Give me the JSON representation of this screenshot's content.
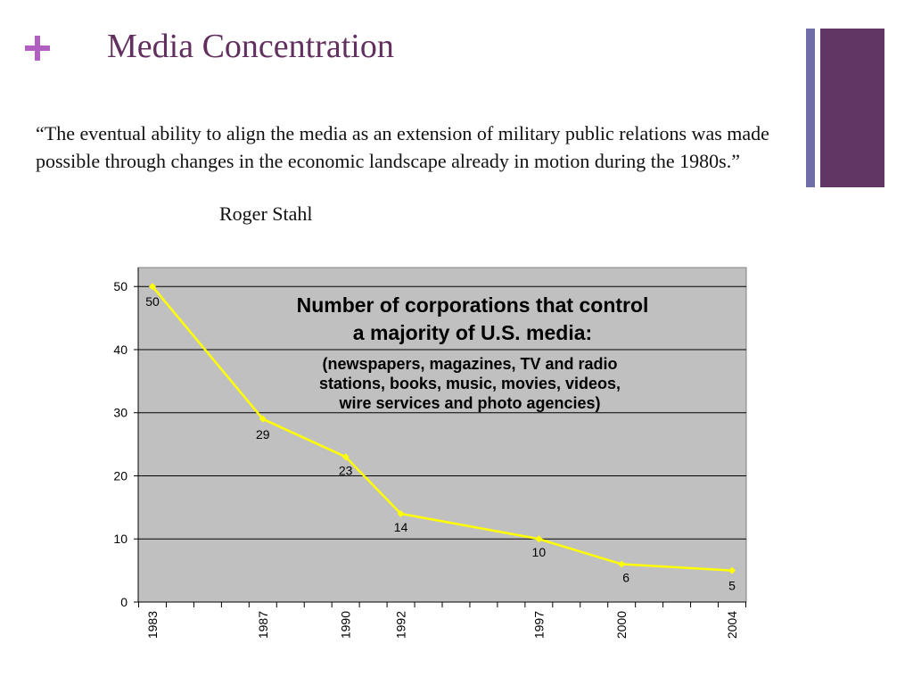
{
  "slide": {
    "title": "Media Concentration",
    "quote": "“The eventual ability to align the media as an extension of military public relations was made possible through changes in the economic landscape already in motion during the 1980s.”",
    "author": "Roger Stahl"
  },
  "colors": {
    "accent_plus": "#b15fc0",
    "title": "#62305f",
    "bar_thin": "#6f6ea8",
    "bar_thick": "#623664",
    "plot_bg": "#c0c0c0",
    "line": "#ffff00"
  },
  "icons": [
    "plus-icon"
  ],
  "chart_data": {
    "type": "line",
    "title": "Number of corporations that control a majority of U.S. media:",
    "title_lines": [
      "Number of corporations that control",
      "a majority of U.S. media:"
    ],
    "subtitle": "(newspapers, magazines, TV and radio stations, books, music, movies, videos, wire services and photo agencies)",
    "subtitle_lines": [
      "(newspapers, magazines, TV and radio",
      "stations, books, music, movies, videos,",
      "wire services and photo agencies)"
    ],
    "x": [
      1983,
      1987,
      1990,
      1992,
      1997,
      2000,
      2004
    ],
    "x_labels": [
      "1983",
      "1987",
      "1990",
      "1992",
      "1997",
      "2000",
      "2004"
    ],
    "values": [
      50,
      29,
      23,
      14,
      10,
      6,
      5
    ],
    "data_labels": [
      "50",
      "29",
      "23",
      "14",
      "10",
      "6",
      "5"
    ],
    "y_ticks": [
      0,
      10,
      20,
      30,
      40,
      50
    ],
    "y_tick_labels": [
      "0",
      "10",
      "20",
      "30",
      "40",
      "50"
    ],
    "xlim": [
      1983,
      2004
    ],
    "ylim": [
      0,
      53
    ],
    "xlabel": "",
    "ylabel": "",
    "grid": "horizontal",
    "legend": "none"
  }
}
